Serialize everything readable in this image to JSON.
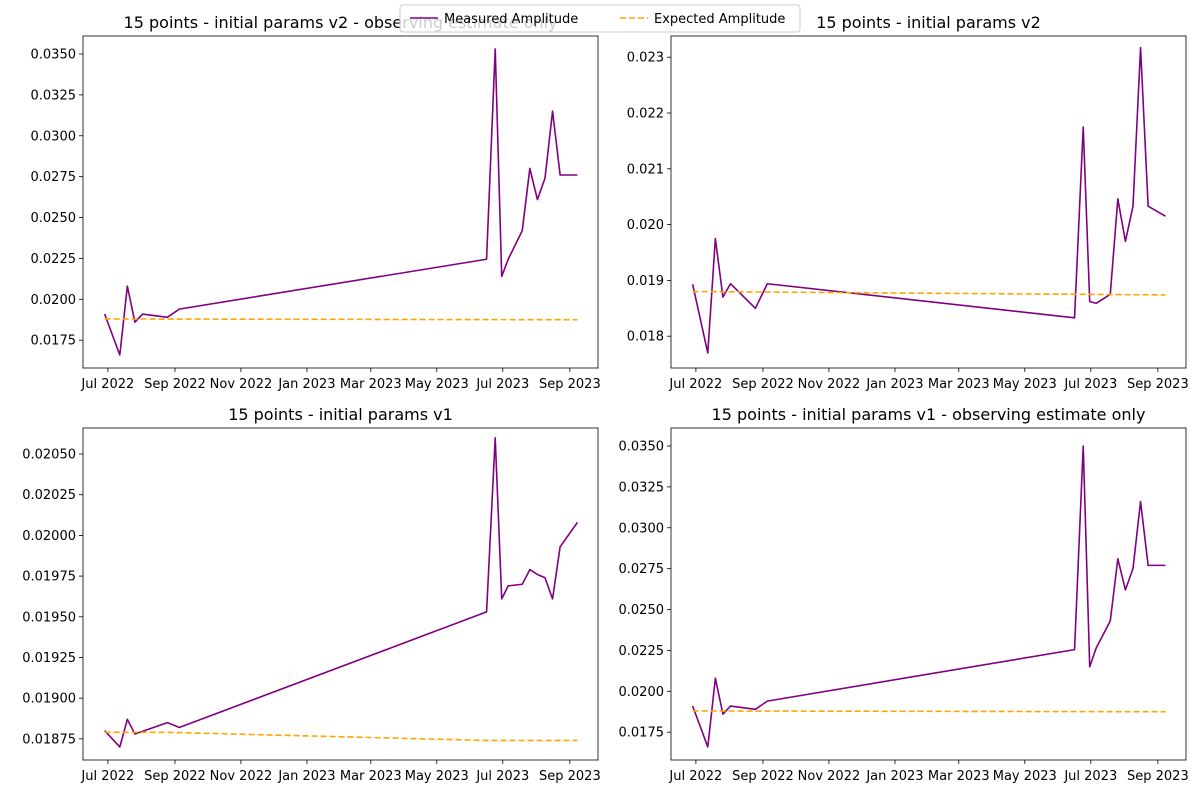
{
  "legend": {
    "entries": [
      {
        "label": "Measured Amplitude",
        "color": "#800080",
        "style": "solid"
      },
      {
        "label": "Expected Amplitude",
        "color": "#FFA500",
        "style": "dashed"
      }
    ],
    "placement": "top-center"
  },
  "chart_data": [
    {
      "type": "line",
      "title": "15 points - initial params v2 - observing estimate only",
      "x_tick_labels": [
        "Jul 2022",
        "Sep 2022",
        "Nov 2022",
        "Jan 2023",
        "Mar 2023",
        "May 2023",
        "Jul 2023",
        "Sep 2023"
      ],
      "y_ticks": [
        0.0175,
        0.02,
        0.0225,
        0.025,
        0.0275,
        0.03,
        0.0325,
        0.035
      ],
      "y_tick_labels": [
        "0.0175",
        "0.0200",
        "0.0225",
        "0.0250",
        "0.0275",
        "0.0300",
        "0.0325",
        "0.0350"
      ],
      "ylim": [
        0.0158,
        0.0361
      ],
      "series": [
        {
          "name": "Measured Amplitude",
          "color": "#800080",
          "x": [
            "2022-06-28",
            "2022-07-12",
            "2022-07-19",
            "2022-07-26",
            "2022-08-02",
            "2022-08-25",
            "2022-09-05",
            "2023-06-16",
            "2023-06-24",
            "2023-06-30",
            "2023-07-06",
            "2023-07-19",
            "2023-07-26",
            "2023-08-02",
            "2023-08-09",
            "2023-08-16",
            "2023-08-23",
            "2023-09-08"
          ],
          "y": [
            0.0191,
            0.0166,
            0.0208,
            0.0186,
            0.0191,
            0.0189,
            0.0194,
            0.02245,
            0.0353,
            0.0214,
            0.02245,
            0.0242,
            0.028,
            0.0261,
            0.0274,
            0.0315,
            0.0276,
            0.0276
          ]
        },
        {
          "name": "Expected Amplitude",
          "color": "#FFA500",
          "x": [
            "2022-06-28",
            "2023-09-08"
          ],
          "y": [
            0.0188,
            0.01875
          ]
        }
      ]
    },
    {
      "type": "line",
      "title": "15 points - initial params v2",
      "x_tick_labels": [
        "Jul 2022",
        "Sep 2022",
        "Nov 2022",
        "Jan 2023",
        "Mar 2023",
        "May 2023",
        "Jul 2023",
        "Sep 2023"
      ],
      "y_ticks": [
        0.018,
        0.019,
        0.02,
        0.021,
        0.022,
        0.023
      ],
      "y_tick_labels": [
        "0.018",
        "0.019",
        "0.020",
        "0.021",
        "0.022",
        "0.023"
      ],
      "ylim": [
        0.01743,
        0.02338
      ],
      "series": [
        {
          "name": "Measured Amplitude",
          "color": "#800080",
          "x": [
            "2022-06-28",
            "2022-07-12",
            "2022-07-19",
            "2022-07-26",
            "2022-08-02",
            "2022-08-25",
            "2022-09-05",
            "2023-06-16",
            "2023-06-24",
            "2023-06-30",
            "2023-07-06",
            "2023-07-19",
            "2023-07-26",
            "2023-08-02",
            "2023-08-09",
            "2023-08-16",
            "2023-08-23",
            "2023-09-08"
          ],
          "y": [
            0.01893,
            0.0177,
            0.01975,
            0.0187,
            0.01894,
            0.0185,
            0.01894,
            0.01833,
            0.02175,
            0.01862,
            0.01859,
            0.01875,
            0.02046,
            0.0197,
            0.02033,
            0.02317,
            0.02033,
            0.02015
          ]
        },
        {
          "name": "Expected Amplitude",
          "color": "#FFA500",
          "x": [
            "2022-06-28",
            "2023-09-08"
          ],
          "y": [
            0.0188,
            0.01874
          ]
        }
      ]
    },
    {
      "type": "line",
      "title": "15 points - initial params v1",
      "x_tick_labels": [
        "Jul 2022",
        "Sep 2022",
        "Nov 2022",
        "Jan 2023",
        "Mar 2023",
        "May 2023",
        "Jul 2023",
        "Sep 2023"
      ],
      "y_ticks": [
        0.01875,
        0.019,
        0.01925,
        0.0195,
        0.01975,
        0.02,
        0.02025,
        0.0205
      ],
      "y_tick_labels": [
        "0.01875",
        "0.01900",
        "0.01925",
        "0.01950",
        "0.01975",
        "0.02000",
        "0.02025",
        "0.02050"
      ],
      "ylim": [
        0.01862,
        0.02066
      ],
      "series": [
        {
          "name": "Measured Amplitude",
          "color": "#800080",
          "x": [
            "2022-06-28",
            "2022-07-12",
            "2022-07-19",
            "2022-07-26",
            "2022-08-25",
            "2022-09-05",
            "2023-06-16",
            "2023-06-24",
            "2023-06-30",
            "2023-07-06",
            "2023-07-19",
            "2023-07-26",
            "2023-08-02",
            "2023-08-09",
            "2023-08-16",
            "2023-08-23",
            "2023-09-08"
          ],
          "y": [
            0.0188,
            0.0187,
            0.01887,
            0.01878,
            0.01885,
            0.01882,
            0.01953,
            0.0206,
            0.01961,
            0.01969,
            0.0197,
            0.01979,
            0.01976,
            0.01974,
            0.01961,
            0.01993,
            0.02008
          ]
        },
        {
          "name": "Expected Amplitude",
          "color": "#FFA500",
          "x": [
            "2022-06-28",
            "2022-08-25",
            "2023-06-16",
            "2023-09-08"
          ],
          "y": [
            0.01879,
            0.01879,
            0.01874,
            0.01874
          ]
        }
      ]
    },
    {
      "type": "line",
      "title": "15 points - initial params v1 - observing estimate only",
      "x_tick_labels": [
        "Jul 2022",
        "Sep 2022",
        "Nov 2022",
        "Jan 2023",
        "Mar 2023",
        "May 2023",
        "Jul 2023",
        "Sep 2023"
      ],
      "y_ticks": [
        0.0175,
        0.02,
        0.0225,
        0.025,
        0.0275,
        0.03,
        0.0325,
        0.035
      ],
      "y_tick_labels": [
        "0.0175",
        "0.0200",
        "0.0225",
        "0.0250",
        "0.0275",
        "0.0300",
        "0.0325",
        "0.0350"
      ],
      "ylim": [
        0.0158,
        0.0361
      ],
      "series": [
        {
          "name": "Measured Amplitude",
          "color": "#800080",
          "x": [
            "2022-06-28",
            "2022-07-12",
            "2022-07-19",
            "2022-07-26",
            "2022-08-02",
            "2022-08-25",
            "2022-09-05",
            "2023-06-16",
            "2023-06-24",
            "2023-06-30",
            "2023-07-06",
            "2023-07-19",
            "2023-07-26",
            "2023-08-02",
            "2023-08-09",
            "2023-08-16",
            "2023-08-23",
            "2023-09-08"
          ],
          "y": [
            0.0191,
            0.0166,
            0.0208,
            0.0186,
            0.0191,
            0.0189,
            0.0194,
            0.02255,
            0.035,
            0.0215,
            0.02265,
            0.0243,
            0.0281,
            0.0262,
            0.0275,
            0.0316,
            0.0277,
            0.0277
          ]
        },
        {
          "name": "Expected Amplitude",
          "color": "#FFA500",
          "x": [
            "2022-06-28",
            "2023-09-08"
          ],
          "y": [
            0.0188,
            0.01875
          ]
        }
      ]
    }
  ]
}
